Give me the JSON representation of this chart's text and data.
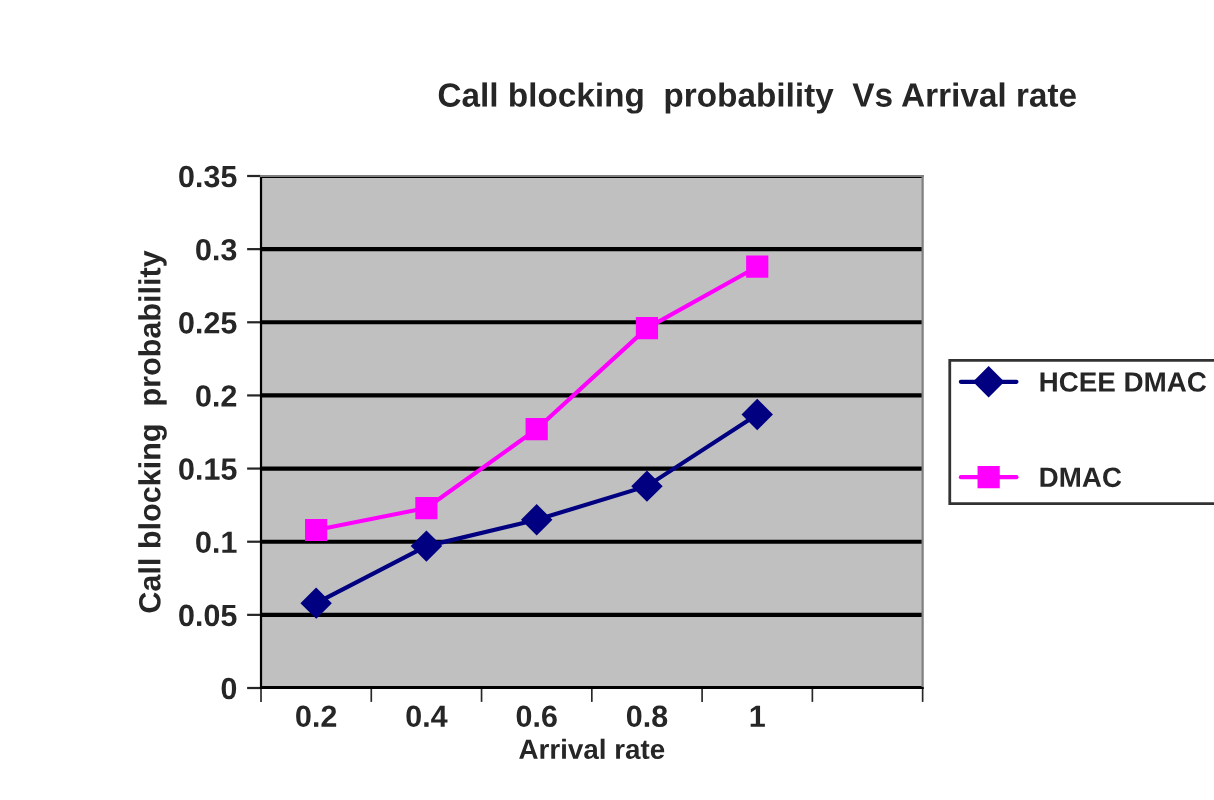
{
  "chart_data": {
    "type": "line",
    "title": "Call blocking  probability  Vs Arrival rate",
    "xlabel": "Arrival rate",
    "ylabel": "Call blocking  probability",
    "categories": [
      "0.2",
      "0.4",
      "0.6",
      "0.8",
      "1",
      null
    ],
    "series": [
      {
        "name": "HCEE DMAC",
        "color": "#000080",
        "marker": "diamond",
        "values": [
          0.058,
          0.097,
          0.115,
          0.138,
          0.187,
          null
        ]
      },
      {
        "name": "DMAC",
        "color": "#ff00ff",
        "marker": "square",
        "values": [
          0.108,
          0.123,
          0.177,
          0.246,
          0.288,
          null
        ]
      }
    ],
    "ylim": [
      0,
      0.35
    ],
    "yticks": [
      0,
      0.05,
      0.1,
      0.15,
      0.2,
      0.25,
      0.3,
      0.35
    ],
    "grid": "y",
    "legend": "right",
    "line_style": "solid"
  }
}
